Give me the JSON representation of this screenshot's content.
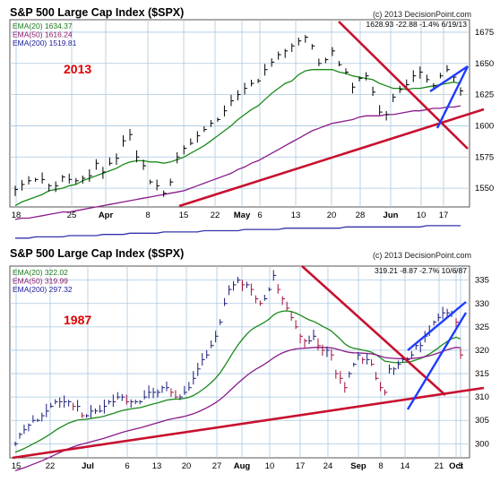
{
  "charts": [
    {
      "title": "S&P 500 Large Cap Index ($SPX)",
      "copyright": "(c) 2013 DecisionPoint.com",
      "quote": "1628.93  -22.88  -1.4%  6/19/13",
      "year_label": "2013",
      "ema_labels": [
        "EMA(20) 1634.37",
        "EMA(50) 1616.24",
        "EMA(200) 1519.81"
      ],
      "y_ticks": [
        "1675",
        "1650",
        "1625",
        "1600",
        "1575",
        "1550"
      ],
      "x_ticks": [
        "18",
        "25",
        "Apr",
        "8",
        "15",
        "22",
        "May",
        "6",
        "13",
        "20",
        "28",
        "Jun",
        "10",
        "17"
      ],
      "month_ticks": [
        "Apr",
        "May",
        "Jun"
      ]
    },
    {
      "title": "S&P 500 Large Cap Index ($SPX)",
      "copyright": "(c) 2013 DecisionPoint.com",
      "quote": "319.21  -8.87  -2.7%  10/6/87",
      "year_label": "1987",
      "ema_labels": [
        "EMA(20) 322.02",
        "EMA(50) 319.99",
        "EMA(200) 297.32"
      ],
      "y_ticks": [
        "335",
        "330",
        "325",
        "320",
        "315",
        "310",
        "305",
        "300"
      ],
      "x_ticks": [
        "15",
        "22",
        "Jul",
        "6",
        "13",
        "20",
        "27",
        "Aug",
        "10",
        "17",
        "24",
        "Sep",
        "8",
        "14",
        "21",
        "Oct",
        "5"
      ],
      "month_ticks": [
        "Jul",
        "Aug",
        "Sep",
        "Oct"
      ]
    }
  ],
  "colors": {
    "background": "#ffffff",
    "plot_bg": "#ffffff",
    "grid": "#aac8e0",
    "frame": "#555555",
    "bar": "#000000",
    "ema20": "#1a8a1a",
    "ema50": "#8a1a8a",
    "ema200": "#3333aa",
    "trendline_red": "#c8102e",
    "trendline_blue": "#1e3cff",
    "year_label": "#dd0000",
    "ema20_text": "#1a7a1a",
    "ema50_text": "#8a1a6a",
    "ema200_text": "#1a1a9a"
  },
  "chart_data": [
    {
      "type": "line",
      "title": "S&P 500 Large Cap Index ($SPX)",
      "ylim": [
        1535,
        1685
      ],
      "y_ticks": [
        1550,
        1575,
        1600,
        1625,
        1650,
        1675
      ],
      "x_tick_labels": [
        "18",
        "25",
        "Apr",
        "8",
        "15",
        "22",
        "May",
        "6",
        "13",
        "20",
        "28",
        "Jun",
        "10",
        "17"
      ],
      "price_bars_close": [
        1549,
        1553,
        1556,
        1557,
        1557,
        1552,
        1552,
        1559,
        1557,
        1556,
        1558,
        1560,
        1570,
        1563,
        1570,
        1574,
        1588,
        1593,
        1575,
        1568,
        1555,
        1552,
        1546,
        1555,
        1575,
        1582,
        1586,
        1592,
        1597,
        1602,
        1605,
        1612,
        1620,
        1625,
        1630,
        1634,
        1636,
        1645,
        1651,
        1657,
        1660,
        1664,
        1668,
        1671,
        1664,
        1650,
        1653,
        1660,
        1649,
        1643,
        1631,
        1638,
        1640,
        1627,
        1611,
        1609,
        1623,
        1629,
        1633,
        1640,
        1643,
        1637,
        1632,
        1640,
        1645,
        1639,
        1628
      ],
      "series": [
        {
          "name": "EMA(20)",
          "values": [
            1536,
            1539,
            1541,
            1543,
            1545,
            1548,
            1549,
            1550,
            1552,
            1553,
            1556,
            1558,
            1560,
            1562,
            1564,
            1566,
            1569,
            1571,
            1572,
            1572,
            1571,
            1571,
            1570,
            1571,
            1573,
            1575,
            1578,
            1581,
            1584,
            1588,
            1592,
            1596,
            1600,
            1605,
            1609,
            1613,
            1616,
            1621,
            1626,
            1630,
            1634,
            1636,
            1641,
            1644,
            1645,
            1645,
            1645,
            1645,
            1643,
            1642,
            1640,
            1639,
            1638,
            1637,
            1634,
            1632,
            1630,
            1630,
            1629,
            1630,
            1630,
            1631,
            1632,
            1633,
            1634,
            1635,
            1634
          ]
        },
        {
          "name": "EMA(50)",
          "values": [
            1525,
            1526,
            1526,
            1527,
            1528,
            1529,
            1530,
            1531,
            1531,
            1532,
            1533,
            1534,
            1535,
            1536,
            1537,
            1538,
            1539,
            1540,
            1541,
            1542,
            1543,
            1544,
            1545,
            1546,
            1547,
            1548,
            1550,
            1552,
            1554,
            1556,
            1558,
            1560,
            1562,
            1565,
            1567,
            1570,
            1572,
            1575,
            1578,
            1581,
            1584,
            1587,
            1590,
            1593,
            1596,
            1598,
            1600,
            1602,
            1603,
            1604,
            1605,
            1607,
            1608,
            1608,
            1608,
            1609,
            1609,
            1610,
            1611,
            1612,
            1612,
            1613,
            1614,
            1614,
            1615,
            1615,
            1616
          ]
        },
        {
          "name": "EMA(200)",
          "values": [
            1510,
            1510,
            1510,
            1511,
            1511,
            1511,
            1511,
            1511,
            1512,
            1512,
            1512,
            1512,
            1512,
            1513,
            1513,
            1513,
            1513,
            1514,
            1514,
            1514,
            1514,
            1514,
            1515,
            1515,
            1515,
            1515,
            1515,
            1515,
            1516,
            1516,
            1516,
            1516,
            1516,
            1516,
            1517,
            1517,
            1517,
            1517,
            1517,
            1517,
            1518,
            1518,
            1518,
            1518,
            1518,
            1518,
            1518,
            1518,
            1518,
            1519,
            1519,
            1519,
            1519,
            1519,
            1519,
            1519,
            1519,
            1519,
            1519,
            1519,
            1519,
            1520,
            1520,
            1520,
            1520,
            1520,
            1520
          ]
        }
      ]
    },
    {
      "type": "line",
      "title": "S&P 500 Large Cap Index ($SPX)",
      "ylim": [
        297,
        338
      ],
      "y_ticks": [
        300,
        305,
        310,
        315,
        320,
        325,
        330,
        335
      ],
      "x_tick_labels": [
        "15",
        "22",
        "Jul",
        "6",
        "13",
        "20",
        "27",
        "Aug",
        "10",
        "17",
        "24",
        "Sep",
        "8",
        "14",
        "21",
        "Oct",
        "5"
      ],
      "price_bars_close": [
        300,
        302,
        303,
        304,
        305,
        305,
        306,
        307,
        308,
        309,
        309,
        309,
        309,
        308,
        308,
        306,
        306,
        307,
        307,
        307,
        308,
        309,
        309,
        310,
        310,
        309,
        309,
        309,
        309,
        310,
        311,
        311,
        311,
        312,
        312,
        311,
        310,
        310,
        311,
        312,
        314,
        316,
        318,
        319,
        321,
        323,
        326,
        330,
        333,
        334,
        335,
        334,
        334,
        333,
        331,
        330,
        331,
        333,
        336,
        333,
        331,
        329,
        327,
        325,
        323,
        322,
        322,
        323,
        321,
        320,
        320,
        319,
        315,
        314,
        312,
        315,
        317,
        319,
        318,
        318,
        317,
        314,
        312,
        311,
        316,
        316,
        317,
        318,
        318,
        319,
        321,
        321,
        323,
        324,
        326,
        327,
        328,
        328,
        328,
        326,
        319
      ]
    }
  ]
}
